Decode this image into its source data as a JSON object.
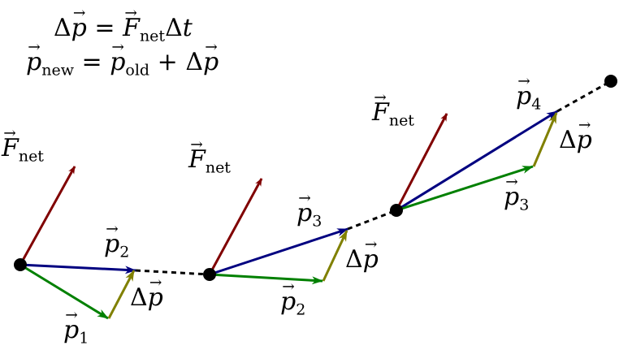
{
  "equations": {
    "line1": {
      "delta": "Δ",
      "p": "p",
      "eq": " = ",
      "F": "F",
      "net": "net",
      "delta2": "Δ",
      "t": "t"
    },
    "line2": {
      "p": "p",
      "new": "new",
      "eq": " = ",
      "p2": "p",
      "old": "old",
      "plus": " + ",
      "delta": "Δ",
      "p3": "p"
    }
  },
  "colors": {
    "force": "#800000",
    "momentum_new": "#000080",
    "momentum_old": "#008000",
    "delta_p": "#808000",
    "point": "#000000"
  },
  "labels": {
    "step1": {
      "force": {
        "sym": "F",
        "sub": "net"
      },
      "p_new": {
        "sym": "p",
        "sub": "2"
      },
      "delta": {
        "pre": "Δ",
        "sym": "p"
      },
      "p_old": {
        "sym": "p",
        "sub": "1"
      }
    },
    "step2": {
      "force": {
        "sym": "F",
        "sub": "net"
      },
      "p_new": {
        "sym": "p",
        "sub": "3"
      },
      "delta": {
        "pre": "Δ",
        "sym": "p"
      },
      "p_old": {
        "sym": "p",
        "sub": "2"
      }
    },
    "step3": {
      "force": {
        "sym": "F",
        "sub": "net"
      },
      "p_new": {
        "sym": "p",
        "sub": "4"
      },
      "delta": {
        "pre": "Δ",
        "sym": "p"
      },
      "p_old": {
        "sym": "p",
        "sub": "3"
      }
    }
  }
}
